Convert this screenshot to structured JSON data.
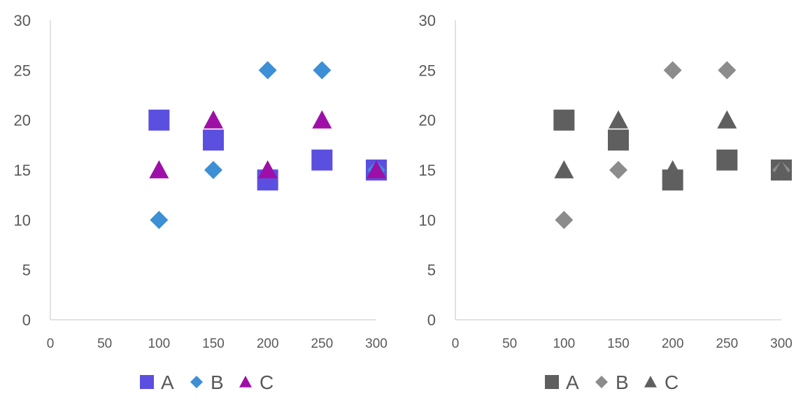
{
  "chart_data": [
    {
      "type": "scatter",
      "title": "",
      "xlabel": "",
      "ylabel": "",
      "xlim": [
        0,
        300
      ],
      "ylim": [
        0,
        30
      ],
      "x_ticks": [
        0,
        50,
        100,
        150,
        200,
        250,
        300
      ],
      "y_ticks": [
        0,
        5,
        10,
        15,
        20,
        25,
        30
      ],
      "x_tick_labels": [
        "0",
        "50",
        "100",
        "150",
        "200",
        "250",
        "300"
      ],
      "y_tick_labels": [
        "0",
        "5",
        "10",
        "15",
        "20",
        "25",
        "30"
      ],
      "grid": false,
      "legend_position": "bottom",
      "series": [
        {
          "name": "A",
          "marker": "square",
          "color": "#5b4fe0",
          "points": [
            {
              "x": 100,
              "y": 20
            },
            {
              "x": 150,
              "y": 18
            },
            {
              "x": 200,
              "y": 14
            },
            {
              "x": 250,
              "y": 16
            },
            {
              "x": 300,
              "y": 15
            }
          ]
        },
        {
          "name": "B",
          "marker": "diamond",
          "color": "#3d8fd6",
          "points": [
            {
              "x": 100,
              "y": 10
            },
            {
              "x": 150,
              "y": 15
            },
            {
              "x": 200,
              "y": 25
            },
            {
              "x": 250,
              "y": 25
            },
            {
              "x": 300,
              "y": 15
            }
          ]
        },
        {
          "name": "C",
          "marker": "triangle",
          "color": "#9e0fa8",
          "points": [
            {
              "x": 100,
              "y": 15
            },
            {
              "x": 150,
              "y": 20
            },
            {
              "x": 200,
              "y": 15
            },
            {
              "x": 250,
              "y": 20
            },
            {
              "x": 300,
              "y": 15
            }
          ]
        }
      ]
    },
    {
      "type": "scatter",
      "title": "",
      "xlabel": "",
      "ylabel": "",
      "xlim": [
        0,
        300
      ],
      "ylim": [
        0,
        30
      ],
      "x_ticks": [
        0,
        50,
        100,
        150,
        200,
        250,
        300
      ],
      "y_ticks": [
        0,
        5,
        10,
        15,
        20,
        25,
        30
      ],
      "x_tick_labels": [
        "0",
        "50",
        "100",
        "150",
        "200",
        "250",
        "300"
      ],
      "y_tick_labels": [
        "0",
        "5",
        "10",
        "15",
        "20",
        "25",
        "30"
      ],
      "grid": false,
      "legend_position": "bottom",
      "series": [
        {
          "name": "A",
          "marker": "square",
          "color": "#5f5f5f",
          "points": [
            {
              "x": 100,
              "y": 20
            },
            {
              "x": 150,
              "y": 18
            },
            {
              "x": 200,
              "y": 14
            },
            {
              "x": 250,
              "y": 16
            },
            {
              "x": 300,
              "y": 15
            }
          ]
        },
        {
          "name": "B",
          "marker": "diamond",
          "color": "#8c8c8c",
          "points": [
            {
              "x": 100,
              "y": 10
            },
            {
              "x": 150,
              "y": 15
            },
            {
              "x": 200,
              "y": 25
            },
            {
              "x": 250,
              "y": 25
            },
            {
              "x": 300,
              "y": 15
            }
          ]
        },
        {
          "name": "C",
          "marker": "triangle",
          "color": "#5f5f5f",
          "points": [
            {
              "x": 100,
              "y": 15
            },
            {
              "x": 150,
              "y": 20
            },
            {
              "x": 200,
              "y": 15
            },
            {
              "x": 250,
              "y": 20
            },
            {
              "x": 300,
              "y": 15
            }
          ]
        }
      ]
    }
  ],
  "colors": {
    "axis_line": "#d9d9d9",
    "tick_text": "#595959"
  }
}
